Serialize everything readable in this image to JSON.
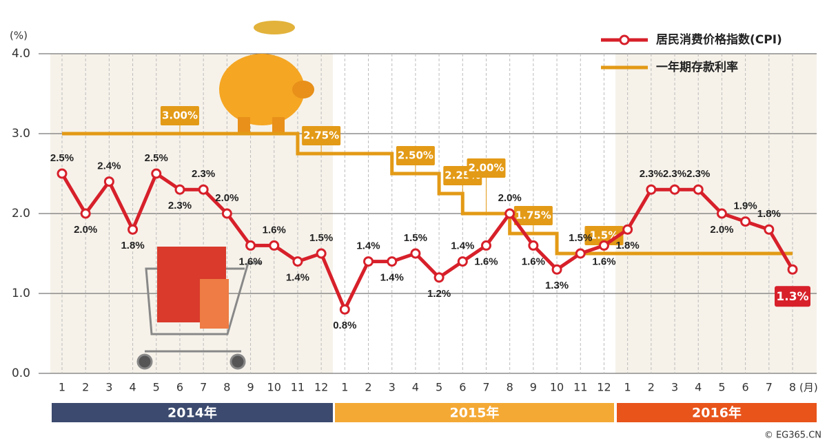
{
  "chart_data": {
    "type": "line",
    "y_unit": "(%)",
    "x_unit": "(月)",
    "categories": [
      "1",
      "2",
      "3",
      "4",
      "5",
      "6",
      "7",
      "8",
      "9",
      "10",
      "11",
      "12",
      "1",
      "2",
      "3",
      "4",
      "5",
      "6",
      "7",
      "8",
      "9",
      "10",
      "11",
      "12",
      "1",
      "2",
      "3",
      "4",
      "5",
      "6",
      "7",
      "8"
    ],
    "years": [
      {
        "label": "2014年",
        "color": "#3b4a6e"
      },
      {
        "label": "2015年",
        "color": "#f4a935"
      },
      {
        "label": "2016年",
        "color": "#e8541a"
      }
    ],
    "series": [
      {
        "name": "居民消费价格指数(CPI)",
        "color": "#d7202a",
        "values": [
          2.5,
          2.0,
          2.4,
          1.8,
          2.5,
          2.3,
          2.3,
          2.0,
          1.6,
          1.6,
          1.4,
          1.5,
          0.8,
          1.4,
          1.4,
          1.5,
          1.2,
          1.4,
          1.6,
          2.0,
          1.6,
          1.3,
          1.5,
          1.6,
          1.8,
          2.3,
          2.3,
          2.3,
          2.0,
          1.9,
          1.8,
          1.3
        ],
        "value_labels": [
          "2.5%",
          "2.0%",
          "2.4%",
          "1.8%",
          "2.5%",
          "2.3%",
          "2.3%",
          "2.0%",
          "1.6%",
          "1.6%",
          "1.4%",
          "1.5%",
          "0.8%",
          "1.4%",
          "1.4%",
          "1.5%",
          "1.2%",
          "1.4%",
          "1.6%",
          "2.0%",
          "1.6%",
          "1.3%",
          "1.5%",
          "1.6%",
          "1.8%",
          "2.3%",
          "2.3%",
          "2.3%",
          "2.0%",
          "1.9%",
          "1.8%",
          "1.3%"
        ]
      },
      {
        "name": "一年期存款利率",
        "color": "#e39a16",
        "step": true,
        "values": [
          3.0,
          3.0,
          3.0,
          3.0,
          3.0,
          3.0,
          3.0,
          3.0,
          3.0,
          3.0,
          2.75,
          2.75,
          2.75,
          2.75,
          2.5,
          2.5,
          2.25,
          2.0,
          2.0,
          1.75,
          1.75,
          1.5,
          1.5,
          1.5,
          1.5,
          1.5,
          1.5,
          1.5,
          1.5,
          1.5,
          1.5,
          1.5
        ],
        "annotations": [
          {
            "value": 3.0,
            "label": "3.00%"
          },
          {
            "value": 2.75,
            "label": "2.75%"
          },
          {
            "value": 2.5,
            "label": "2.50%"
          },
          {
            "value": 2.25,
            "label": "2.25%"
          },
          {
            "value": 2.0,
            "label": "2.00%"
          },
          {
            "value": 1.75,
            "label": "1.75%"
          },
          {
            "value": 1.5,
            "label": "1.5%"
          }
        ]
      }
    ],
    "ylim": [
      0,
      4
    ],
    "yticks": [
      {
        "value": 0,
        "label": "0.0"
      },
      {
        "value": 1,
        "label": "1.0"
      },
      {
        "value": 2,
        "label": "2.0"
      },
      {
        "value": 3,
        "label": "3.0"
      },
      {
        "value": 4,
        "label": "4.0"
      }
    ],
    "grid": true,
    "legend": "top-right",
    "source": "© EG365.CN"
  }
}
